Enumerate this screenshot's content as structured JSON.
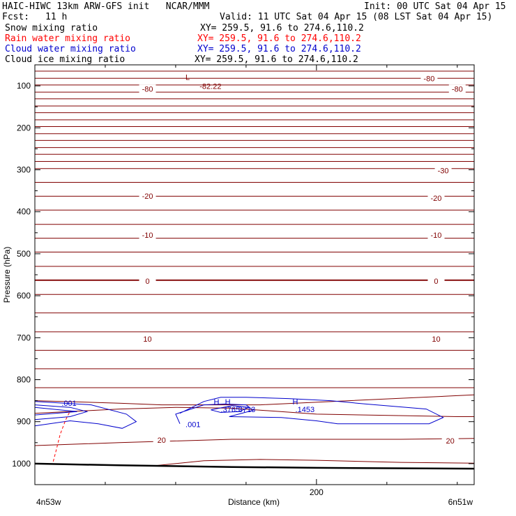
{
  "header": {
    "title": "HAIC-HIWC 13km ARW-GFS init   NCAR/MMM",
    "init": "Init: 00 UTC Sat 04 Apr 15",
    "fcst_label": "Fcst:",
    "fcst_value": "11 h",
    "valid": "Valid: 11 UTC Sat 04 Apr 15 (08 LST Sat 04 Apr 15)"
  },
  "fields": [
    {
      "name": "Snow mixing ratio",
      "xy": "XY= 259.5, 91.6 to 274.6,110.2",
      "color": "#000000"
    },
    {
      "name": "Rain water mixing ratio",
      "xy": "XY= 259.5, 91.6 to 274.6,110.2",
      "color": "#ff0000"
    },
    {
      "name": "Cloud water mixing ratio",
      "xy": "XY= 259.5, 91.6 to 274.6,110.2",
      "color": "#0000cc"
    },
    {
      "name": "Cloud ice mixing ratio",
      "xy": "XY= 259.5, 91.6 to 274.6,110.2",
      "color": "#000000"
    }
  ],
  "chart_data": {
    "type": "line",
    "xlabel": "Distance (km)",
    "ylabel": "Pressure (hPa)",
    "xlim": [
      0,
      312
    ],
    "ylim": [
      1050,
      50
    ],
    "x_ticks": [
      200
    ],
    "y_ticks": [
      100,
      200,
      300,
      400,
      500,
      600,
      700,
      800,
      900,
      1000
    ],
    "left_end_label": "4n53w",
    "right_end_label": "6n51w",
    "temperature_color": "#800000",
    "cloud_color": "#0000cc",
    "rain_color": "#ff0000",
    "isotherm_pressures": [
      65,
      82,
      98,
      115,
      131,
      148,
      164,
      181,
      197,
      214,
      230,
      247,
      263,
      280,
      297,
      330,
      363,
      396,
      430,
      463,
      496,
      530,
      563,
      597,
      641,
      686,
      730,
      774,
      819
    ],
    "isotherm_labels": [
      {
        "text": "-80",
        "x": 280,
        "p": 82
      },
      {
        "text": "-80",
        "x": 80,
        "p": 107
      },
      {
        "text": "-80",
        "x": 300,
        "p": 107
      },
      {
        "text": "-30",
        "x": 290,
        "p": 302
      },
      {
        "text": "-20",
        "x": 80,
        "p": 362
      },
      {
        "text": "-20",
        "x": 285,
        "p": 367
      },
      {
        "text": "-10",
        "x": 80,
        "p": 455
      },
      {
        "text": "-10",
        "x": 285,
        "p": 455
      },
      {
        "text": "0",
        "x": 80,
        "p": 565
      },
      {
        "text": "0",
        "x": 285,
        "p": 565
      },
      {
        "text": "10",
        "x": 80,
        "p": 703
      },
      {
        "text": "10",
        "x": 285,
        "p": 703
      },
      {
        "text": "20",
        "x": 90,
        "p": 944
      },
      {
        "text": "20",
        "x": 295,
        "p": 945
      }
    ],
    "surface_line": [
      [
        0,
        1000
      ],
      [
        60,
        1004
      ],
      [
        140,
        1008
      ],
      [
        200,
        1010
      ],
      [
        312,
        1012
      ]
    ],
    "lower_isotherms": [
      [
        [
          0,
          850
        ],
        [
          60,
          856
        ],
        [
          90,
          860
        ],
        [
          160,
          860
        ],
        [
          300,
          838
        ],
        [
          312,
          836
        ]
      ],
      [
        [
          0,
          880
        ],
        [
          60,
          870
        ],
        [
          100,
          866
        ],
        [
          140,
          868
        ],
        [
          200,
          882
        ],
        [
          300,
          888
        ],
        [
          312,
          888
        ]
      ],
      [
        [
          0,
          957
        ],
        [
          60,
          950
        ],
        [
          140,
          942
        ],
        [
          200,
          942
        ],
        [
          260,
          942
        ],
        [
          312,
          940
        ]
      ],
      [
        [
          85,
          1005
        ],
        [
          120,
          993
        ],
        [
          160,
          990
        ],
        [
          200,
          992
        ],
        [
          260,
          997
        ],
        [
          312,
          999
        ]
      ]
    ],
    "cloud_water_contours": [
      [
        [
          0,
          852
        ],
        [
          40,
          860
        ],
        [
          65,
          882
        ],
        [
          72,
          900
        ],
        [
          62,
          916
        ],
        [
          45,
          905
        ],
        [
          25,
          898
        ],
        [
          0,
          910
        ]
      ],
      [
        [
          0,
          860
        ],
        [
          25,
          866
        ],
        [
          37,
          876
        ],
        [
          25,
          888
        ],
        [
          0,
          895
        ]
      ],
      [
        [
          0,
          866
        ],
        [
          30,
          876
        ],
        [
          0,
          884
        ]
      ],
      [
        [
          103,
          905
        ],
        [
          100,
          882
        ],
        [
          120,
          860
        ],
        [
          135,
          858
        ],
        [
          150,
          860
        ],
        [
          155,
          873
        ],
        [
          138,
          888
        ],
        [
          175,
          890
        ],
        [
          200,
          898
        ],
        [
          215,
          905
        ],
        [
          280,
          905
        ],
        [
          290,
          890
        ],
        [
          278,
          870
        ],
        [
          235,
          858
        ],
        [
          210,
          850
        ],
        [
          180,
          845
        ],
        [
          150,
          842
        ],
        [
          132,
          842
        ],
        [
          120,
          852
        ],
        [
          103,
          880
        ]
      ],
      [
        [
          125,
          872
        ],
        [
          140,
          862
        ],
        [
          152,
          866
        ],
        [
          145,
          876
        ],
        [
          132,
          878
        ],
        [
          125,
          872
        ]
      ]
    ],
    "rain_line": [
      [
        13,
        995
      ],
      [
        15,
        970
      ],
      [
        18,
        930
      ],
      [
        22,
        895
      ],
      [
        25,
        875
      ]
    ],
    "annotations": [
      {
        "text": "L",
        "x": 107,
        "p": 79,
        "color": "#800000"
      },
      {
        "text": "-82.22",
        "x": 117,
        "p": 101,
        "color": "#800000"
      },
      {
        "text": ".001",
        "x": 19,
        "p": 856,
        "color": "#0000cc"
      },
      {
        "text": "H",
        "x": 127,
        "p": 852,
        "color": "#0000cc"
      },
      {
        "text": "H",
        "x": 135,
        "p": 852,
        "color": "#0000cc"
      },
      {
        "text": ".3765",
        "x": 132,
        "p": 871,
        "color": "#0000cc"
      },
      {
        "text": ".3713",
        "x": 143,
        "p": 871,
        "color": "#0000cc"
      },
      {
        "text": "H",
        "x": 183,
        "p": 852,
        "color": "#0000cc"
      },
      {
        "text": ".1453",
        "x": 185,
        "p": 871,
        "color": "#0000cc"
      },
      {
        "text": ".001",
        "x": 107,
        "p": 906,
        "color": "#0000cc"
      }
    ]
  }
}
